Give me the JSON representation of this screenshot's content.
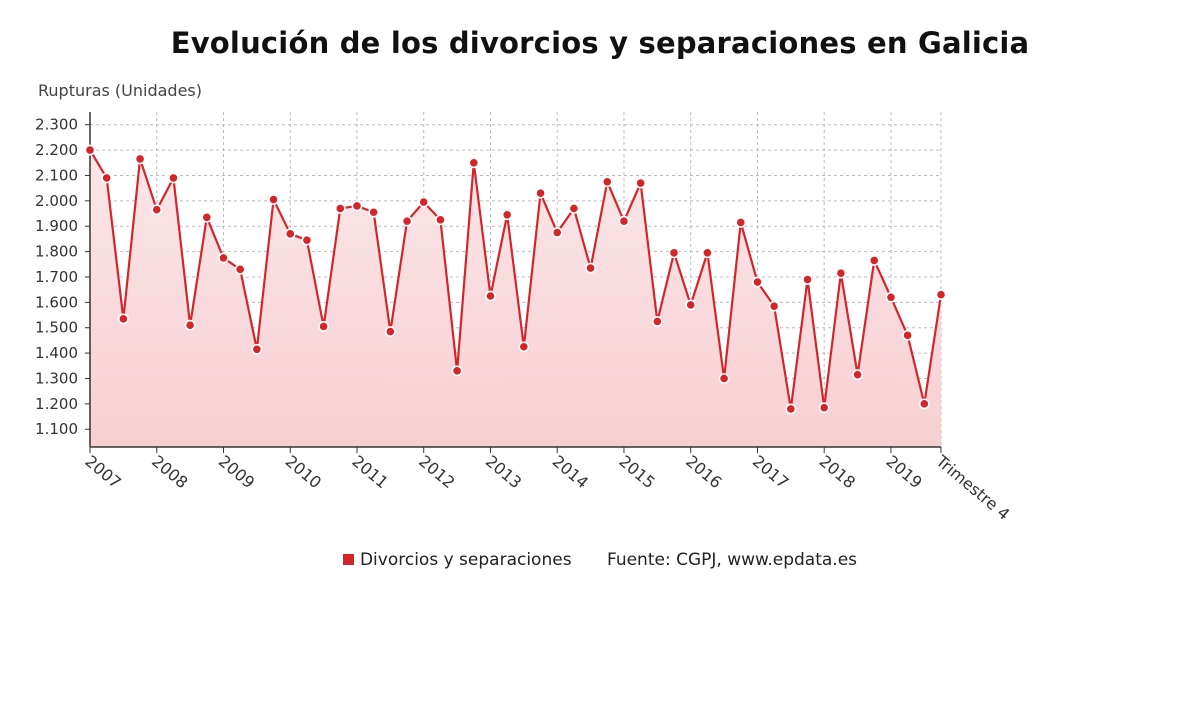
{
  "chart_data": {
    "type": "area",
    "title": "Evolución de los divorcios y separaciones en Galicia",
    "ylabel": "Rupturas (Unidades)",
    "xlabel": "",
    "ylim": [
      1030,
      2350
    ],
    "yticks": [
      1100,
      1200,
      1300,
      1400,
      1500,
      1600,
      1700,
      1800,
      1900,
      2000,
      2100,
      2200,
      2300
    ],
    "ytick_labels": [
      "1.100",
      "1.200",
      "1.300",
      "1.400",
      "1.500",
      "1.600",
      "1.700",
      "1.800",
      "1.900",
      "2.000",
      "2.100",
      "2.200",
      "2.300"
    ],
    "xtick_labels": [
      "2007",
      "2008",
      "2009",
      "2010",
      "2011",
      "2012",
      "2013",
      "2014",
      "2015",
      "2016",
      "2017",
      "2018",
      "2019",
      "Trimestre 4"
    ],
    "xtick_positions": [
      0,
      4,
      8,
      12,
      16,
      20,
      24,
      28,
      32,
      36,
      40,
      44,
      48,
      51
    ],
    "grid": true,
    "legend_position": "bottom",
    "colors": {
      "line": "#d3262a",
      "fill_top": "#fbe7e8",
      "fill_bottom": "#f7cfd2",
      "grid": "#bbbbbb"
    },
    "series": [
      {
        "name": "Divorcios y separaciones",
        "values": [
          2200,
          2090,
          1535,
          2165,
          1965,
          2090,
          1510,
          1935,
          1775,
          1730,
          1415,
          2005,
          1870,
          1845,
          1505,
          1970,
          1980,
          1955,
          1485,
          1920,
          1995,
          1925,
          1330,
          2150,
          1625,
          1945,
          1425,
          2030,
          1875,
          1970,
          1735,
          2075,
          1920,
          2070,
          1525,
          1795,
          1590,
          1795,
          1300,
          1915,
          1680,
          1585,
          1180,
          1690,
          1185,
          1715,
          1315,
          1765,
          1620,
          1470,
          1200,
          1630
        ]
      }
    ]
  },
  "legend": {
    "series_label": "Divorcios y separaciones",
    "source": "Fuente: CGPJ, www.epdata.es"
  }
}
